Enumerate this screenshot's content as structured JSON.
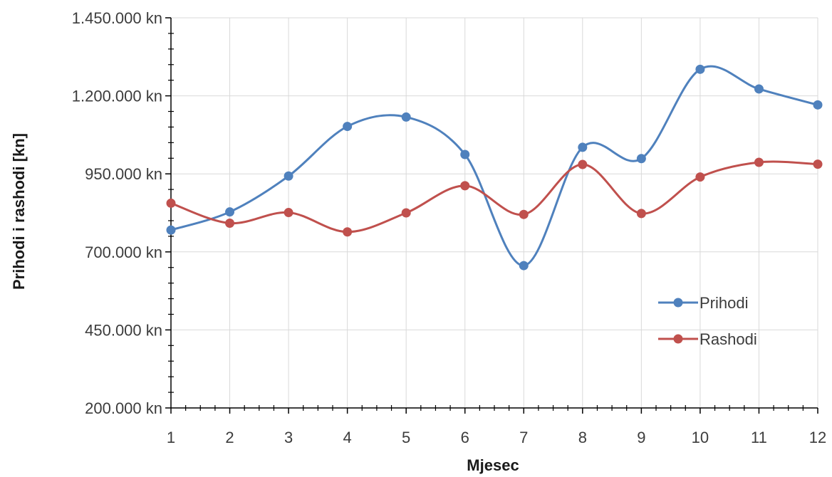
{
  "chart_data": {
    "type": "line",
    "title": "",
    "xlabel": "Mjesec",
    "ylabel": "Prihodi i rashodi [kn]",
    "x": [
      1,
      2,
      3,
      4,
      5,
      6,
      7,
      8,
      9,
      10,
      11,
      12
    ],
    "x_tick_labels": [
      "1",
      "2",
      "3",
      "4",
      "5",
      "6",
      "7",
      "8",
      "9",
      "10",
      "11",
      "12"
    ],
    "xlim": [
      1,
      12
    ],
    "ylim": [
      200000,
      1450000
    ],
    "y_ticks": [
      200000,
      450000,
      700000,
      950000,
      1200000,
      1450000
    ],
    "y_tick_labels": [
      "200.000 kn",
      "450.000 kn",
      "700.000 kn",
      "950.000 kn",
      "1.200.000 kn",
      "1.450.000 kn"
    ],
    "grid": true,
    "smooth": true,
    "legend_position": "right",
    "series": [
      {
        "name": "Prihodi",
        "color": "#4F81BD",
        "values": [
          770000,
          828000,
          943000,
          1102000,
          1132000,
          1012000,
          656000,
          1035000,
          999000,
          1285000,
          1222000,
          1171000
        ]
      },
      {
        "name": "Rashodi",
        "color": "#C0504D",
        "values": [
          856000,
          792000,
          826000,
          764000,
          825000,
          912000,
          820000,
          980000,
          823000,
          940000,
          987000,
          981000
        ]
      }
    ]
  }
}
